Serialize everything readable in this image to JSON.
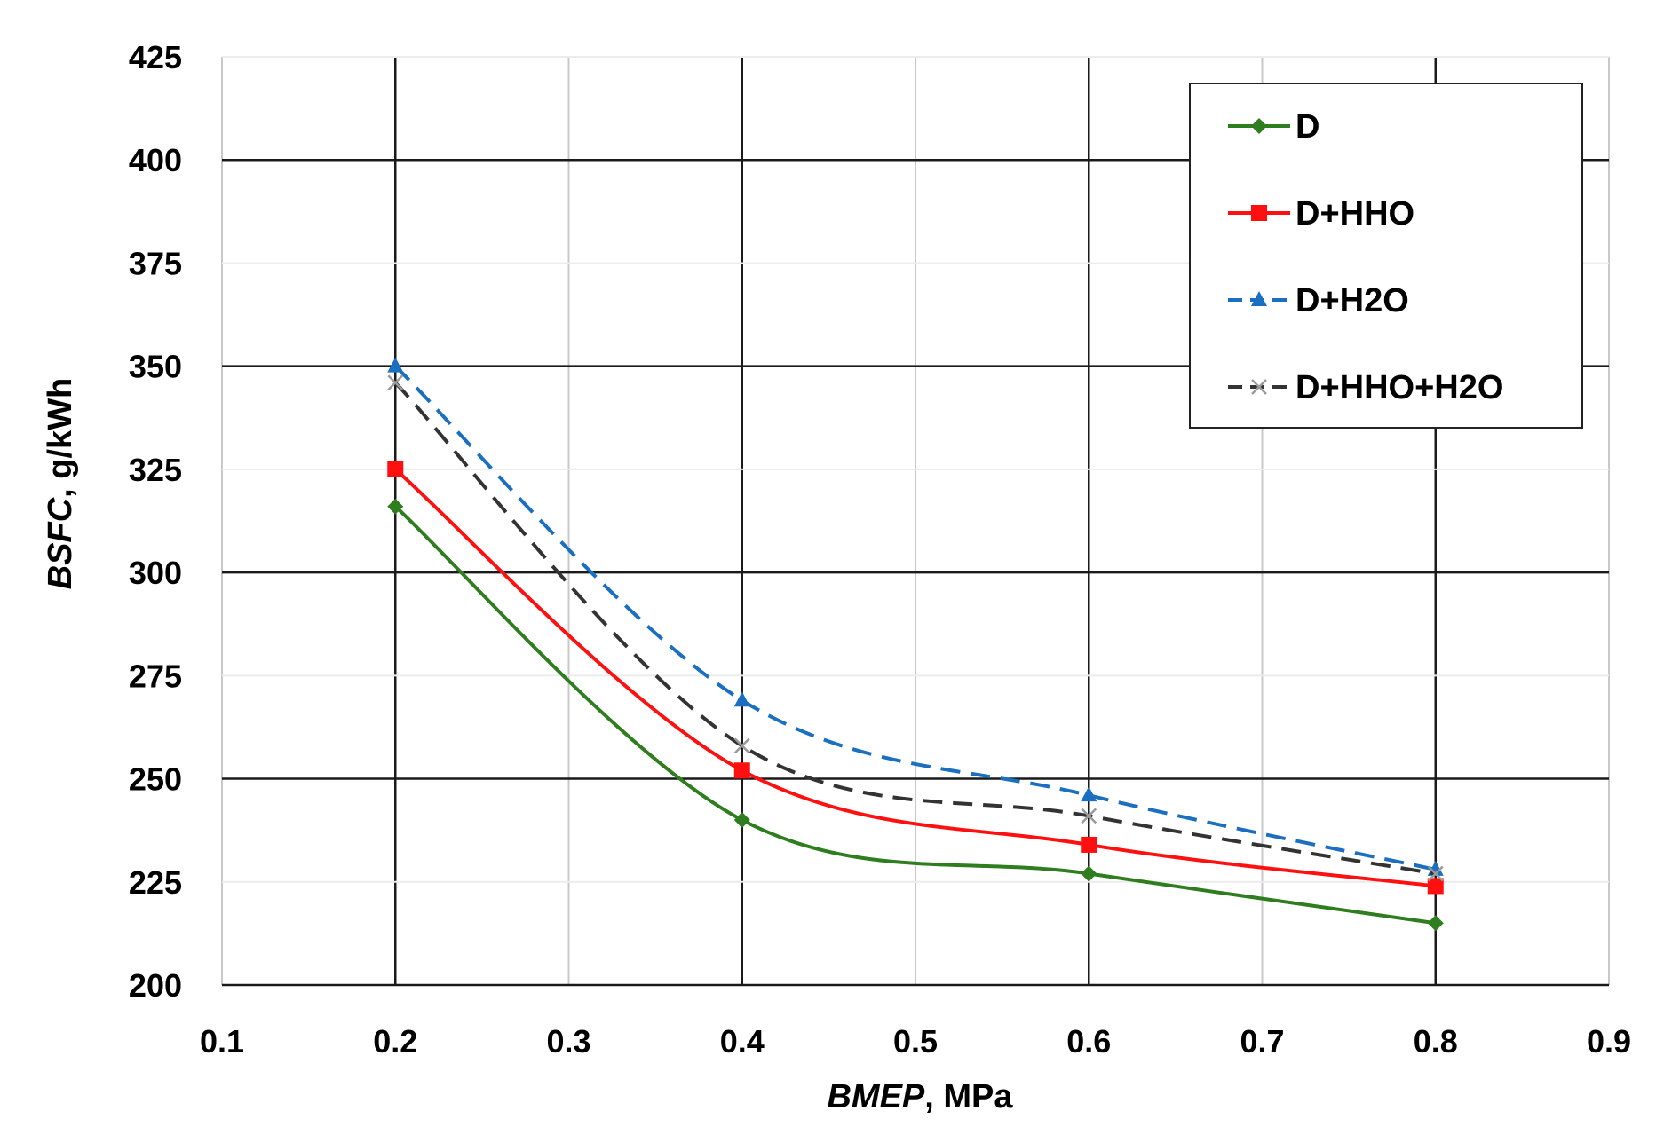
{
  "chart_data": {
    "type": "line",
    "title": "",
    "xlabel_italic": "BMEP",
    "xlabel_unit": ", MPa",
    "ylabel_italic": "BSFC",
    "ylabel_unit": ", g/kWh",
    "xlim": [
      0.1,
      0.9
    ],
    "ylim": [
      200,
      425
    ],
    "xticks": [
      0.1,
      0.2,
      0.3,
      0.4,
      0.5,
      0.6,
      0.7,
      0.8,
      0.9
    ],
    "xtick_labels": [
      "0.1",
      "0.2",
      "0.3",
      "0.4",
      "0.5",
      "0.6",
      "0.7",
      "0.8",
      "0.9"
    ],
    "yticks": [
      200,
      225,
      250,
      275,
      300,
      325,
      350,
      375,
      400,
      425
    ],
    "ytick_labels": [
      "200",
      "225",
      "250",
      "275",
      "300",
      "325",
      "350",
      "375",
      "400",
      "425"
    ],
    "grid": true,
    "legend_position": "top-right",
    "x": [
      0.2,
      0.4,
      0.6,
      0.8
    ],
    "series": [
      {
        "name": "D",
        "values": [
          316,
          240,
          227,
          215
        ],
        "color": "#2e7d1e",
        "dash": "solid",
        "marker": "diamond"
      },
      {
        "name": "D+HHO",
        "values": [
          325,
          252,
          234,
          224
        ],
        "color": "#ff1010",
        "dash": "solid",
        "marker": "square"
      },
      {
        "name": "D+H2O",
        "values": [
          350,
          269,
          246,
          228
        ],
        "color": "#1a6fc0",
        "dash": "dashed",
        "marker": "triangle"
      },
      {
        "name": "D+HHO+H2O",
        "values": [
          346,
          258,
          241,
          227
        ],
        "color": "#333333",
        "dash": "dashed",
        "marker": "x"
      }
    ]
  }
}
